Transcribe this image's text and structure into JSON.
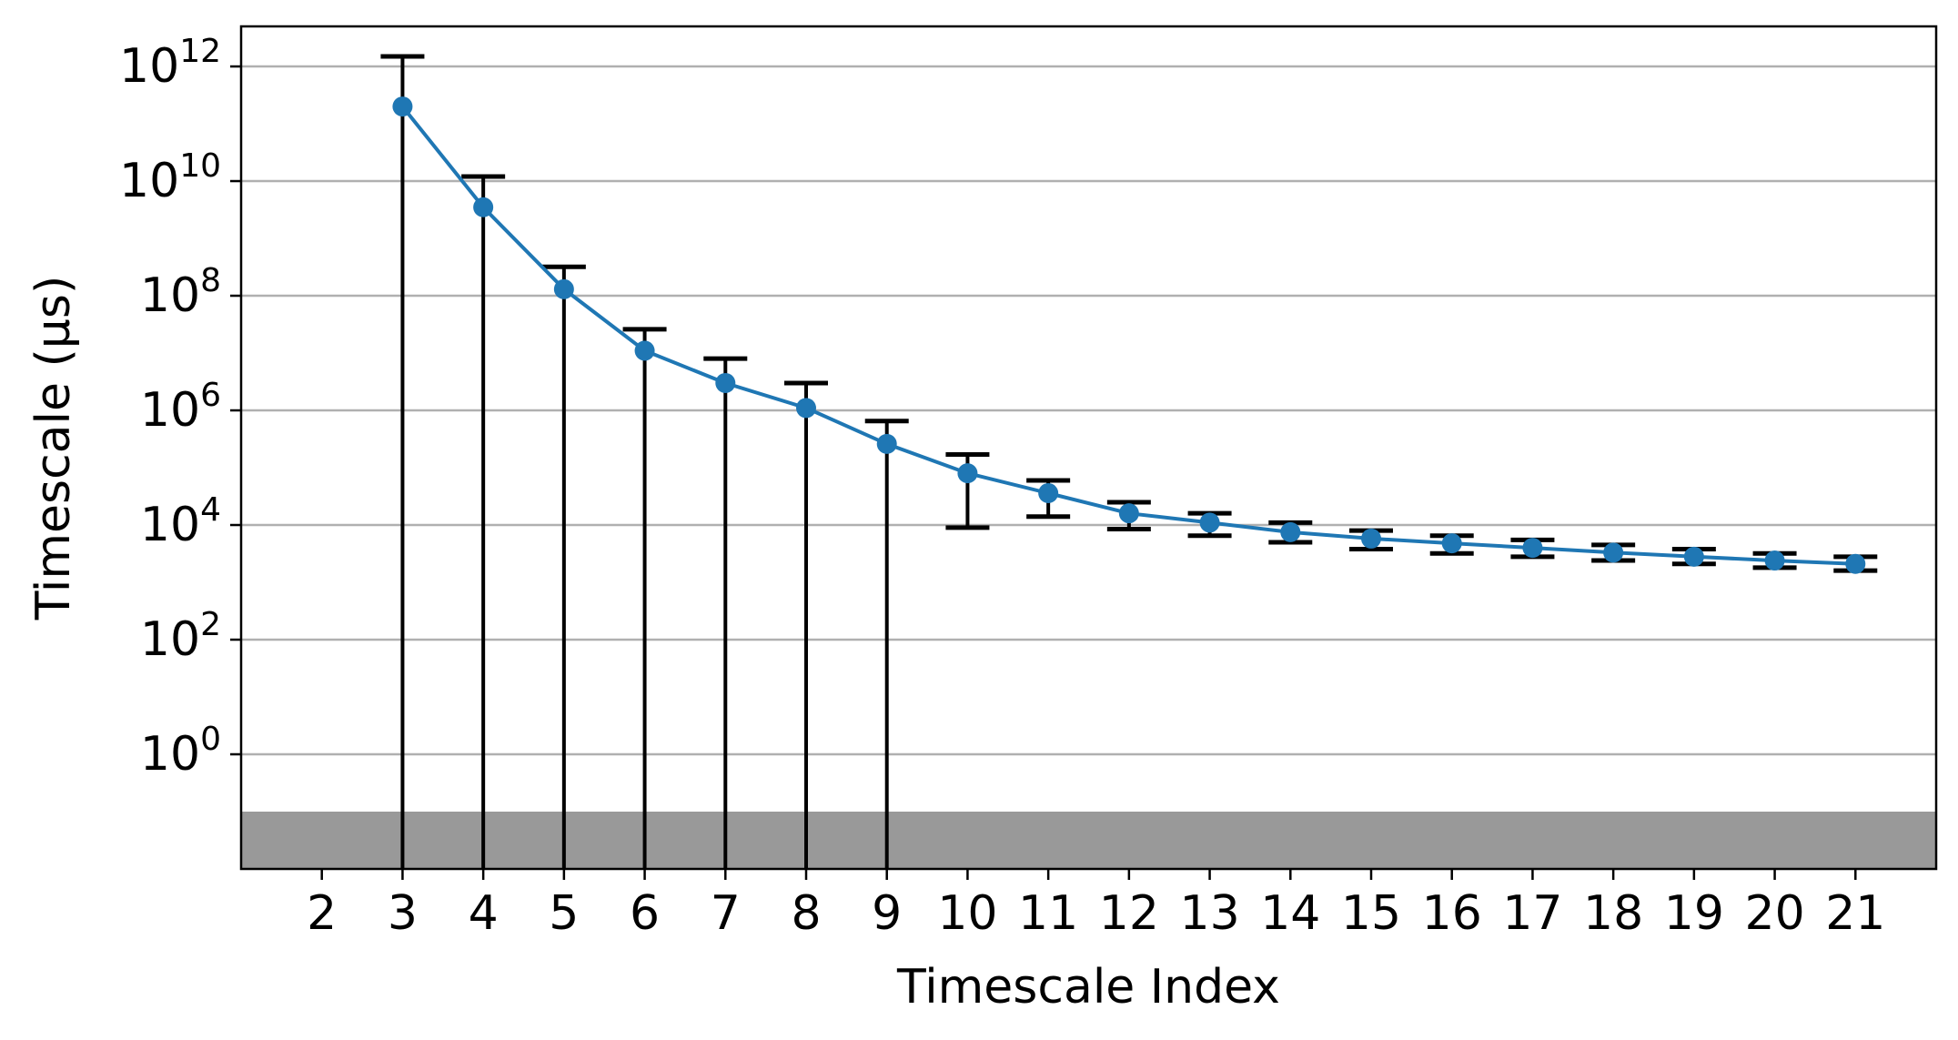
{
  "chart_data": {
    "type": "line",
    "xlabel": "Timescale Index",
    "ylabel": "Timescale (μs)",
    "yscale": "log",
    "grid": "horizontal",
    "xlim": [
      1,
      22
    ],
    "ylim": [
      0.01,
      5000000000000.0
    ],
    "xticks": [
      "2",
      "3",
      "4",
      "5",
      "6",
      "7",
      "8",
      "9",
      "10",
      "11",
      "12",
      "13",
      "14",
      "15",
      "16",
      "17",
      "18",
      "19",
      "20",
      "21"
    ],
    "yticks": [
      {
        "base": "10",
        "exp": "0",
        "value": 1
      },
      {
        "base": "10",
        "exp": "2",
        "value": 100
      },
      {
        "base": "10",
        "exp": "4",
        "value": 10000
      },
      {
        "base": "10",
        "exp": "6",
        "value": 1000000
      },
      {
        "base": "10",
        "exp": "8",
        "value": 100000000
      },
      {
        "base": "10",
        "exp": "10",
        "value": 10000000000
      },
      {
        "base": "10",
        "exp": "12",
        "value": 1000000000000
      }
    ],
    "shaded_region": {
      "y_below": 0.1,
      "color": "#999999"
    },
    "colors": {
      "series": "#1f77b4",
      "errorbar": "#000000",
      "grid": "#b0b0b0"
    },
    "series": [
      {
        "x": [
          3,
          4,
          5,
          6,
          7,
          8,
          9,
          10,
          11,
          12,
          13,
          14,
          15,
          16,
          17,
          18,
          19,
          20,
          21
        ],
        "values": [
          200000000000.0,
          3500000000.0,
          130000000.0,
          11000000.0,
          3000000.0,
          1100000.0,
          260000.0,
          80000.0,
          36000.0,
          16000.0,
          11000.0,
          7500.0,
          5800.0,
          4800.0,
          4000.0,
          3300.0,
          2800.0,
          2400.0,
          2100.0
        ],
        "err_low": [
          0.01,
          0.01,
          0.01,
          0.01,
          0.01,
          0.01,
          0.01,
          9000.0,
          14000.0,
          8500.0,
          6500.0,
          5000.0,
          3800.0,
          3200.0,
          2800.0,
          2400.0,
          2100.0,
          1800.0,
          1600.0
        ],
        "err_high": [
          1500000000000.0,
          12000000000.0,
          320000000.0,
          26000000.0,
          8000000.0,
          3000000.0,
          650000.0,
          170000.0,
          60000.0,
          25000.0,
          16000.0,
          11000.0,
          8000.0,
          6500.0,
          5500.0,
          4500.0,
          3800.0,
          3200.0,
          2800.0
        ]
      }
    ]
  }
}
